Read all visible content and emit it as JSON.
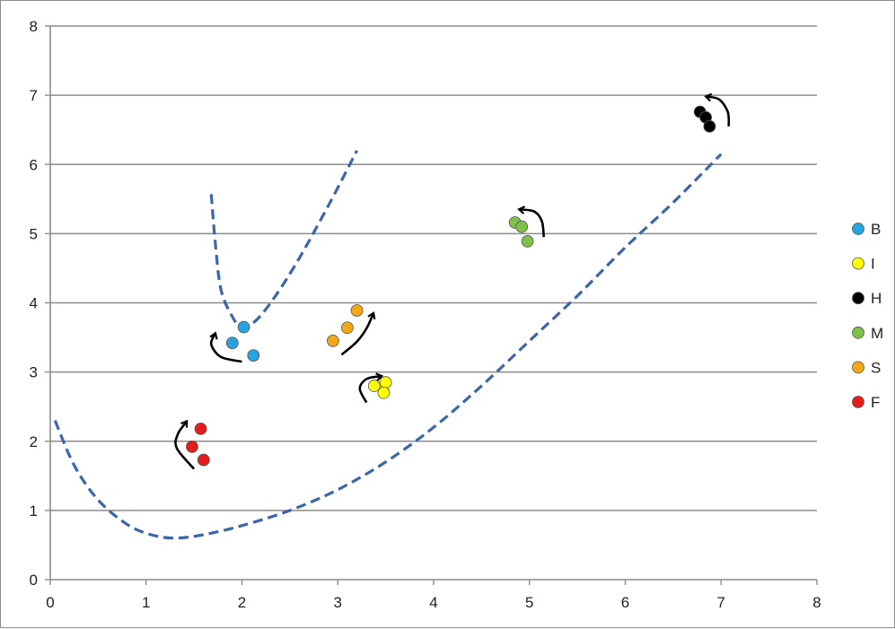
{
  "chart_data": {
    "type": "scatter",
    "title": "",
    "xlabel": "",
    "ylabel": "",
    "xlim": [
      0,
      8
    ],
    "ylim": [
      0,
      8
    ],
    "x_ticks": [
      "0",
      "1",
      "2",
      "3",
      "4",
      "5",
      "6",
      "7",
      "8"
    ],
    "y_ticks": [
      "0",
      "1",
      "2",
      "3",
      "4",
      "5",
      "6",
      "7",
      "8"
    ],
    "grid": "horizontal",
    "legend_position": "right",
    "series": [
      {
        "name": "B",
        "color": "#29a3e0",
        "points": [
          [
            1.9,
            3.42
          ],
          [
            2.02,
            3.65
          ],
          [
            2.12,
            3.24
          ]
        ]
      },
      {
        "name": "I",
        "color": "#ffff00",
        "points": [
          [
            3.38,
            2.8
          ],
          [
            3.5,
            2.85
          ],
          [
            3.48,
            2.7
          ]
        ]
      },
      {
        "name": "H",
        "color": "#000000",
        "points": [
          [
            6.78,
            6.76
          ],
          [
            6.84,
            6.68
          ],
          [
            6.88,
            6.55
          ]
        ]
      },
      {
        "name": "M",
        "color": "#7ec24a",
        "points": [
          [
            4.85,
            5.16
          ],
          [
            4.92,
            5.1
          ],
          [
            4.98,
            4.89
          ]
        ]
      },
      {
        "name": "S",
        "color": "#f2a817",
        "points": [
          [
            2.95,
            3.45
          ],
          [
            3.1,
            3.64
          ],
          [
            3.2,
            3.89
          ]
        ]
      },
      {
        "name": "F",
        "color": "#e31c1c",
        "points": [
          [
            1.48,
            1.92
          ],
          [
            1.57,
            2.18
          ],
          [
            1.6,
            1.73
          ]
        ]
      }
    ],
    "dashed_curves": [
      {
        "color": "#3d66a8",
        "points": [
          [
            1.68,
            5.57
          ],
          [
            1.72,
            4.9
          ],
          [
            1.78,
            4.2
          ],
          [
            1.9,
            3.8
          ],
          [
            2.0,
            3.65
          ],
          [
            2.15,
            3.75
          ],
          [
            2.35,
            4.1
          ],
          [
            2.6,
            4.65
          ],
          [
            2.9,
            5.4
          ],
          [
            3.2,
            6.2
          ]
        ]
      },
      {
        "color": "#3d66a8",
        "points": [
          [
            0.05,
            2.3
          ],
          [
            0.25,
            1.65
          ],
          [
            0.5,
            1.15
          ],
          [
            0.8,
            0.8
          ],
          [
            1.05,
            0.65
          ],
          [
            1.3,
            0.6
          ],
          [
            1.6,
            0.65
          ],
          [
            2.0,
            0.78
          ],
          [
            2.5,
            1.0
          ],
          [
            3.0,
            1.3
          ],
          [
            3.5,
            1.7
          ],
          [
            4.0,
            2.2
          ],
          [
            4.5,
            2.8
          ],
          [
            5.0,
            3.45
          ],
          [
            5.5,
            4.1
          ],
          [
            6.0,
            4.8
          ],
          [
            6.5,
            5.45
          ],
          [
            7.0,
            6.15
          ]
        ]
      }
    ],
    "arrows": [
      {
        "color": "#000000",
        "points": [
          [
            2.0,
            3.15
          ],
          [
            1.78,
            3.22
          ],
          [
            1.68,
            3.4
          ],
          [
            1.72,
            3.55
          ]
        ]
      },
      {
        "color": "#000000",
        "points": [
          [
            1.5,
            1.6
          ],
          [
            1.32,
            1.9
          ],
          [
            1.33,
            2.1
          ],
          [
            1.42,
            2.28
          ]
        ]
      },
      {
        "color": "#000000",
        "points": [
          [
            3.04,
            3.25
          ],
          [
            3.2,
            3.44
          ],
          [
            3.3,
            3.63
          ],
          [
            3.37,
            3.84
          ]
        ]
      },
      {
        "color": "#000000",
        "points": [
          [
            3.3,
            2.56
          ],
          [
            3.23,
            2.76
          ],
          [
            3.3,
            2.9
          ],
          [
            3.45,
            2.94
          ]
        ]
      },
      {
        "color": "#000000",
        "points": [
          [
            5.15,
            4.95
          ],
          [
            5.13,
            5.18
          ],
          [
            5.05,
            5.32
          ],
          [
            4.9,
            5.35
          ]
        ]
      },
      {
        "color": "#000000",
        "points": [
          [
            7.08,
            6.55
          ],
          [
            7.07,
            6.76
          ],
          [
            6.98,
            6.94
          ],
          [
            6.85,
            6.98
          ]
        ]
      }
    ]
  }
}
